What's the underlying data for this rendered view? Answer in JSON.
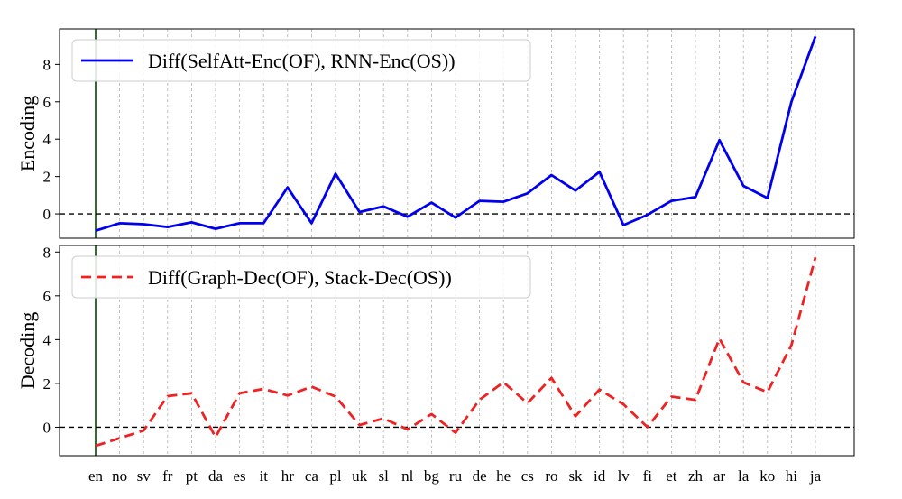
{
  "chart_data": [
    {
      "type": "line",
      "categories": [
        "en",
        "no",
        "sv",
        "fr",
        "pt",
        "da",
        "es",
        "it",
        "hr",
        "ca",
        "pl",
        "uk",
        "sl",
        "nl",
        "bg",
        "ru",
        "de",
        "he",
        "cs",
        "ro",
        "sk",
        "id",
        "lv",
        "fi",
        "et",
        "zh",
        "ar",
        "la",
        "ko",
        "hi",
        "ja"
      ],
      "ylabel": "Encoding",
      "ylim": [
        -1.3,
        9.9
      ],
      "yticks": [
        0,
        2,
        4,
        6,
        8
      ],
      "grid": "vertical-dotted",
      "zero_line": true,
      "reference_vline_category": "en",
      "legend_placement": "upper-left",
      "series": [
        {
          "name": "Diff(SelfAtt-Enc(OF), RNN-Enc(OS))",
          "color": "#0000ee",
          "style": "solid",
          "values": [
            -0.9,
            -0.5,
            -0.55,
            -0.7,
            -0.45,
            -0.8,
            -0.5,
            -0.5,
            1.42,
            -0.5,
            2.15,
            0.1,
            0.4,
            -0.15,
            0.6,
            -0.2,
            0.7,
            0.65,
            1.1,
            2.08,
            1.25,
            2.25,
            -0.6,
            -0.05,
            0.7,
            0.9,
            3.95,
            1.5,
            0.85,
            6.0,
            9.5
          ]
        }
      ]
    },
    {
      "type": "line",
      "categories": [
        "en",
        "no",
        "sv",
        "fr",
        "pt",
        "da",
        "es",
        "it",
        "hr",
        "ca",
        "pl",
        "uk",
        "sl",
        "nl",
        "bg",
        "ru",
        "de",
        "he",
        "cs",
        "ro",
        "sk",
        "id",
        "lv",
        "fi",
        "et",
        "zh",
        "ar",
        "la",
        "ko",
        "hi",
        "ja"
      ],
      "ylabel": "Decoding",
      "ylim": [
        -1.3,
        8.3
      ],
      "yticks": [
        0,
        2,
        4,
        6,
        8
      ],
      "grid": "vertical-dotted",
      "zero_line": true,
      "reference_vline_category": "en",
      "legend_placement": "upper-left",
      "series": [
        {
          "name": "Diff(Graph-Dec(OF), Stack-Dec(OS))",
          "color": "#ee2222",
          "style": "dashed",
          "values": [
            -0.85,
            -0.5,
            -0.15,
            1.42,
            1.55,
            -0.45,
            1.55,
            1.75,
            1.45,
            1.85,
            1.4,
            0.1,
            0.4,
            -0.1,
            0.6,
            -0.25,
            1.25,
            2.05,
            1.1,
            2.25,
            0.5,
            1.72,
            1.05,
            0.0,
            1.4,
            1.25,
            4.05,
            2.05,
            1.6,
            3.75,
            7.75
          ]
        }
      ]
    }
  ]
}
